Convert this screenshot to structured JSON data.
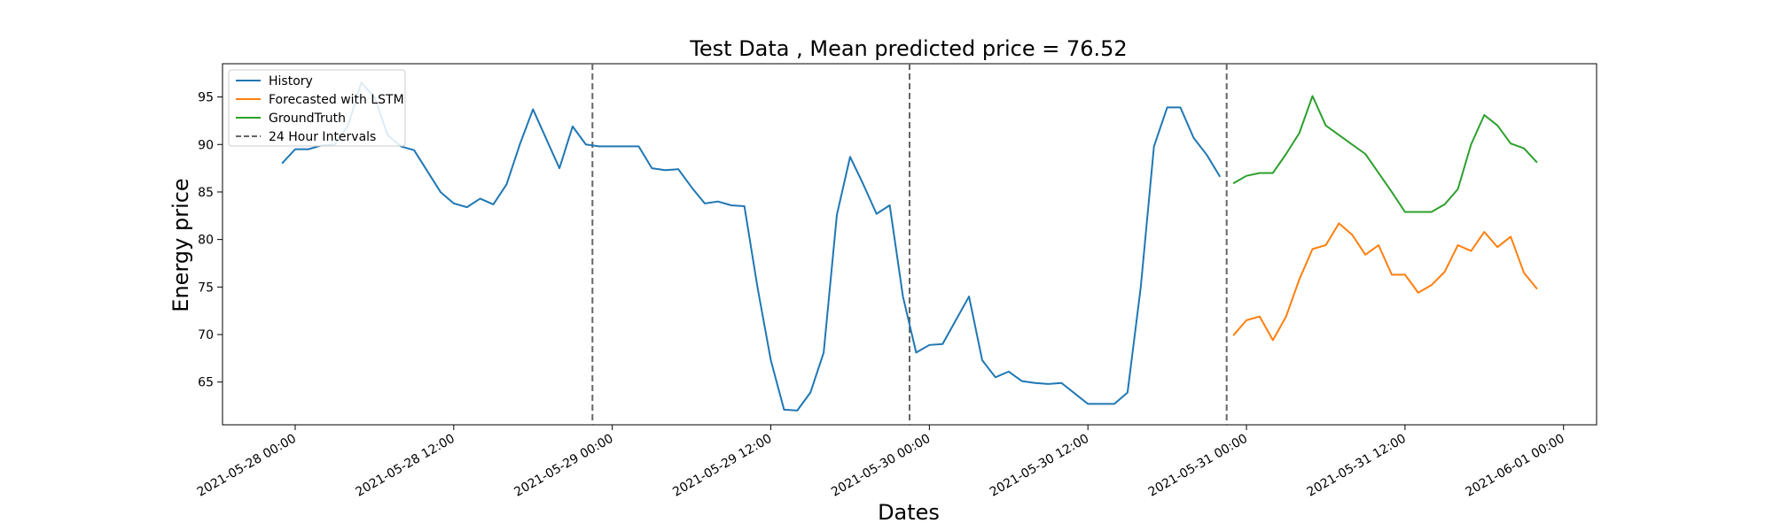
{
  "chart_data": {
    "type": "line",
    "title": "Test Data , Mean predicted price = 76.52",
    "xlabel": "Dates",
    "ylabel": "Energy price",
    "xlim": [
      "2021-05-27 18:30",
      "2021-06-01 02:30"
    ],
    "ylim": [
      60.5,
      98.5
    ],
    "x_ticks": [
      "2021-05-28 00:00",
      "2021-05-28 12:00",
      "2021-05-29 00:00",
      "2021-05-29 12:00",
      "2021-05-30 00:00",
      "2021-05-30 12:00",
      "2021-05-31 00:00",
      "2021-05-31 12:00",
      "2021-06-01 00:00"
    ],
    "y_ticks": [
      65,
      70,
      75,
      80,
      85,
      90,
      95
    ],
    "grid": false,
    "legend_position": "top-left",
    "series": [
      {
        "name": "History",
        "color": "#1f77b4",
        "start": "2021-05-27 23:00",
        "step_hours": 1,
        "values": [
          88.0,
          89.5,
          89.5,
          89.9,
          90.0,
          92.0,
          96.5,
          95.0,
          91.0,
          89.8,
          89.4,
          87.2,
          85.0,
          83.8,
          83.4,
          84.3,
          83.7,
          85.8,
          90.0,
          93.7,
          90.6,
          87.5,
          91.9,
          90.0,
          89.8,
          89.8,
          89.8,
          89.8,
          87.5,
          87.3,
          87.4,
          85.5,
          83.8,
          84.0,
          83.6,
          83.5,
          74.9,
          67.3,
          62.1,
          62.0,
          63.9,
          68.1,
          82.6,
          88.7,
          85.8,
          82.7,
          83.6,
          74.0,
          68.1,
          68.9,
          69.0,
          71.5,
          74.0,
          67.3,
          65.5,
          66.1,
          65.1,
          64.9,
          64.8,
          64.9,
          63.8,
          62.7,
          62.7,
          62.7,
          63.9,
          75.0,
          89.8,
          93.9,
          93.9,
          90.7,
          88.9,
          86.6
        ]
      },
      {
        "name": "Forecasted with LSTM",
        "color": "#ff7f0e",
        "start": "2021-05-30 23:00",
        "step_hours": 1,
        "values": [
          69.9,
          71.5,
          71.9,
          69.4,
          71.9,
          75.8,
          79.0,
          79.4,
          81.7,
          80.5,
          78.4,
          79.4,
          76.3,
          76.3,
          74.4,
          75.2,
          76.6,
          79.4,
          78.8,
          80.8,
          79.2,
          80.3,
          76.5,
          74.8
        ]
      },
      {
        "name": "GroundTruth",
        "color": "#2ca02c",
        "start": "2021-05-30 23:00",
        "step_hours": 1,
        "values": [
          85.9,
          86.7,
          87.0,
          87.0,
          89.0,
          91.2,
          95.1,
          92.0,
          91.0,
          90.0,
          89.0,
          87.0,
          85.0,
          82.9,
          82.9,
          82.9,
          83.7,
          85.3,
          90.0,
          93.1,
          92.0,
          90.1,
          89.6,
          88.1
        ]
      }
    ],
    "vertical_lines": {
      "name": "24 Hour Intervals",
      "color": "#666666",
      "style": "dashed",
      "x": [
        "2021-05-28 22:30",
        "2021-05-29 22:30",
        "2021-05-30 22:30"
      ]
    }
  }
}
